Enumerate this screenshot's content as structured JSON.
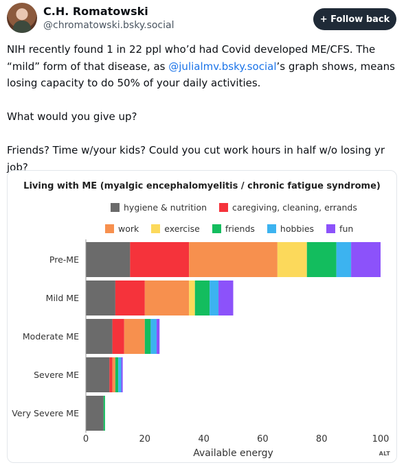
{
  "author": {
    "name": "C.H. Romatowski",
    "handle": "@chromatowski.bsky.social"
  },
  "follow_button": {
    "icon": "plus-icon",
    "label": "+ Follow back"
  },
  "post": {
    "line1_before": "NIH recently found 1 in 22 ppl who’d had Covid developed ME/CFS. The “mild” form of that disease, as ",
    "mention": "@julialmv.bsky.social",
    "line1_after": "’s graph shows, means losing capacity to do 50% of your daily activities.",
    "para2": "What would you give up?",
    "para3": "Friends? Time w/your kids? Could you cut work hours in half w/o losing yr job?"
  },
  "alt_badge": "ALT",
  "chart_data": {
    "type": "bar",
    "orientation": "horizontal",
    "stacked": true,
    "title": "Living with ME (myalgic encephalomyelitis / chronic fatigue syndrome)",
    "xlabel": "Available energy",
    "xlim": [
      0,
      100
    ],
    "xticks": [
      0,
      20,
      40,
      60,
      80,
      100
    ],
    "grid": false,
    "legend_position": "top",
    "categories": [
      "Pre-ME",
      "Mild ME",
      "Moderate ME",
      "Severe ME",
      "Very Severe ME"
    ],
    "series": [
      {
        "name": "hygiene & nutrition",
        "color": "#6b6b6b",
        "values": [
          15,
          10,
          9,
          8,
          6
        ]
      },
      {
        "name": "caregiving, cleaning, errands",
        "color": "#f5333b",
        "values": [
          20,
          10,
          4,
          1,
          0
        ]
      },
      {
        "name": "work",
        "color": "#f7904e",
        "values": [
          30,
          15,
          7,
          1,
          0
        ]
      },
      {
        "name": "exercise",
        "color": "#fcd95b",
        "values": [
          10,
          2,
          0,
          0,
          0
        ]
      },
      {
        "name": "friends",
        "color": "#13bd5e",
        "values": [
          10,
          5,
          2,
          1,
          0.5
        ]
      },
      {
        "name": "hobbies",
        "color": "#3cb3f0",
        "values": [
          5,
          3,
          2,
          1,
          0
        ]
      },
      {
        "name": "fun",
        "color": "#8c52fa",
        "values": [
          10,
          5,
          1,
          0.5,
          0
        ]
      }
    ]
  }
}
